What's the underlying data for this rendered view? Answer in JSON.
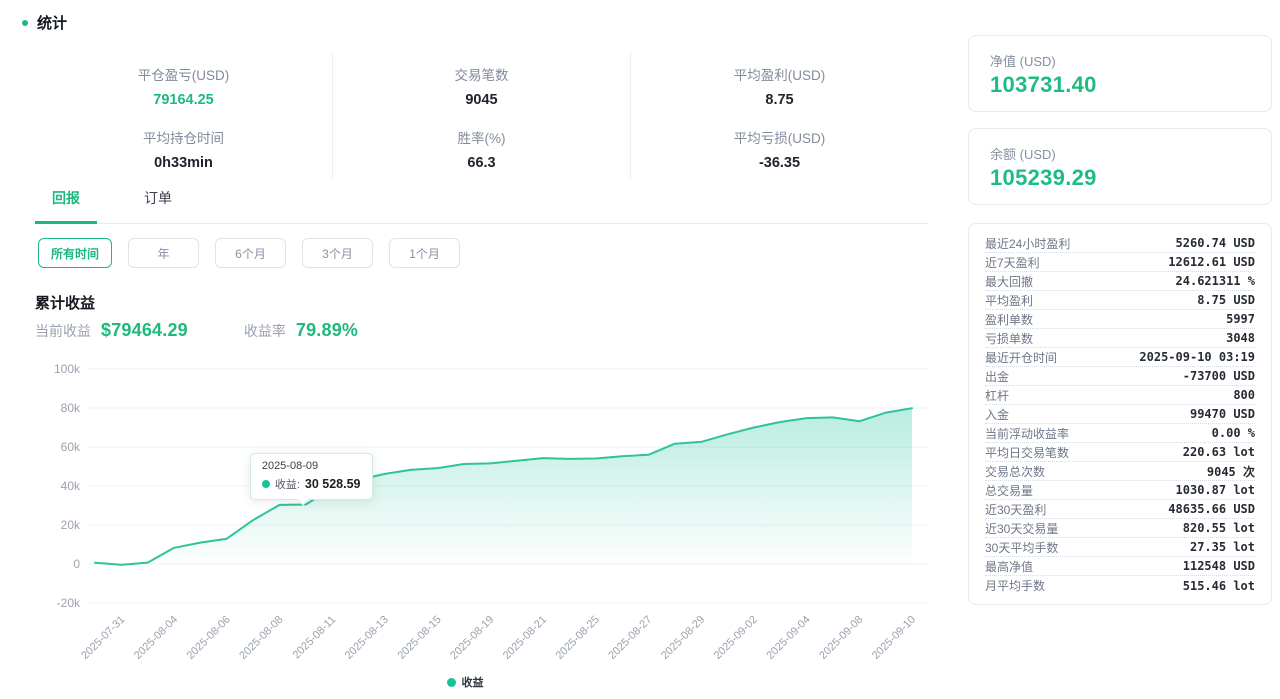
{
  "colors": {
    "accent_green": "#1db87f",
    "value_green": "#21b87e",
    "line_green": "#2fc39b"
  },
  "page_title": "统计",
  "summary_columns": [
    {
      "cells": [
        {
          "label": "平仓盈亏(USD)",
          "value": "79164.25",
          "highlight": true
        },
        {
          "label": "平均持仓时间",
          "value": "0h33min",
          "highlight": false
        }
      ]
    },
    {
      "cells": [
        {
          "label": "交易笔数",
          "value": "9045",
          "highlight": false
        },
        {
          "label": "胜率(%)",
          "value": "66.3",
          "highlight": false
        }
      ]
    },
    {
      "cells": [
        {
          "label": "平均盈利(USD)",
          "value": "8.75",
          "highlight": false
        },
        {
          "label": "平均亏损(USD)",
          "value": "-36.35",
          "highlight": false
        }
      ]
    }
  ],
  "tabs": [
    {
      "label": "回报",
      "active": true
    },
    {
      "label": "订单",
      "active": false
    }
  ],
  "time_filters": [
    {
      "label": "所有时间",
      "active": true
    },
    {
      "label": "年",
      "active": false
    },
    {
      "label": "6个月",
      "active": false
    },
    {
      "label": "3个月",
      "active": false
    },
    {
      "label": "1个月",
      "active": false
    }
  ],
  "returns_section": {
    "title": "累计收益",
    "current_label": "当前收益",
    "current_value": "$79464.29",
    "rate_label": "收益率",
    "rate_value": "79.89%"
  },
  "chart_data": {
    "type": "area",
    "title": "累计收益",
    "xlabel": "",
    "ylabel": "",
    "ylim": [
      -20000,
      100000
    ],
    "grid": true,
    "legend": [
      {
        "label": "收益",
        "color": "#17c296"
      }
    ],
    "x": [
      "2025-07-30",
      "2025-07-31",
      "2025-08-01",
      "2025-08-04",
      "2025-08-05",
      "2025-08-06",
      "2025-08-07",
      "2025-08-08",
      "2025-08-09",
      "2025-08-11",
      "2025-08-12",
      "2025-08-13",
      "2025-08-14",
      "2025-08-15",
      "2025-08-18",
      "2025-08-19",
      "2025-08-20",
      "2025-08-21",
      "2025-08-22",
      "2025-08-25",
      "2025-08-26",
      "2025-08-27",
      "2025-08-28",
      "2025-08-29",
      "2025-09-01",
      "2025-09-02",
      "2025-09-03",
      "2025-09-04",
      "2025-09-05",
      "2025-09-08",
      "2025-09-09",
      "2025-09-10"
    ],
    "values": [
      600,
      -400,
      700,
      8300,
      11000,
      13000,
      22500,
      30300,
      30528.59,
      38800,
      43200,
      46200,
      48300,
      49200,
      51300,
      51600,
      53000,
      54300,
      53900,
      54100,
      55300,
      56000,
      61700,
      62600,
      66500,
      70000,
      72800,
      74800,
      75200,
      73200,
      77600,
      79900
    ],
    "x_tick_labels": [
      "2025-07-31",
      "2025-08-04",
      "2025-08-06",
      "2025-08-08",
      "2025-08-11",
      "2025-08-13",
      "2025-08-15",
      "2025-08-19",
      "2025-08-21",
      "2025-08-25",
      "2025-08-27",
      "2025-08-29",
      "2025-09-02",
      "2025-09-04",
      "2025-09-08",
      "2025-09-10"
    ],
    "y_ticks": [
      {
        "v": 100000,
        "label": "100k"
      },
      {
        "v": 80000,
        "label": "80k"
      },
      {
        "v": 60000,
        "label": "60k"
      },
      {
        "v": 40000,
        "label": "40k"
      },
      {
        "v": 20000,
        "label": "20k"
      },
      {
        "v": 0,
        "label": "0"
      },
      {
        "v": -20000,
        "label": "-20k"
      }
    ],
    "tooltip": {
      "date": "2025-08-09",
      "series_label": "收益:",
      "value_display": "30 528.59",
      "index": 8
    }
  },
  "sidebar": {
    "cards": [
      {
        "label": "净值 (USD)",
        "value": "103731.40"
      },
      {
        "label": "余额 (USD)",
        "value": "105239.29"
      }
    ],
    "stats_table": [
      {
        "label": "最近24小时盈利",
        "value": "5260.74 USD"
      },
      {
        "label": "近7天盈利",
        "value": "12612.61 USD"
      },
      {
        "label": "最大回撤",
        "value": "24.621311 %"
      },
      {
        "label": "平均盈利",
        "value": "8.75 USD"
      },
      {
        "label": "盈利单数",
        "value": "5997"
      },
      {
        "label": "亏损单数",
        "value": "3048"
      },
      {
        "label": "最近开仓时间",
        "value": "2025-09-10 03:19"
      },
      {
        "label": "出金",
        "value": "-73700 USD"
      },
      {
        "label": "杠杆",
        "value": "800"
      },
      {
        "label": "入金",
        "value": "99470 USD"
      },
      {
        "label": "当前浮动收益率",
        "value": "0.00 %"
      },
      {
        "label": "平均日交易笔数",
        "value": "220.63 lot"
      },
      {
        "label": "交易总次数",
        "value": "9045 次"
      },
      {
        "label": "总交易量",
        "value": "1030.87 lot"
      },
      {
        "label": "近30天盈利",
        "value": "48635.66 USD"
      },
      {
        "label": "近30天交易量",
        "value": "820.55 lot"
      },
      {
        "label": "30天平均手数",
        "value": "27.35 lot"
      },
      {
        "label": "最高净值",
        "value": "112548 USD"
      },
      {
        "label": "月平均手数",
        "value": "515.46 lot"
      }
    ]
  }
}
